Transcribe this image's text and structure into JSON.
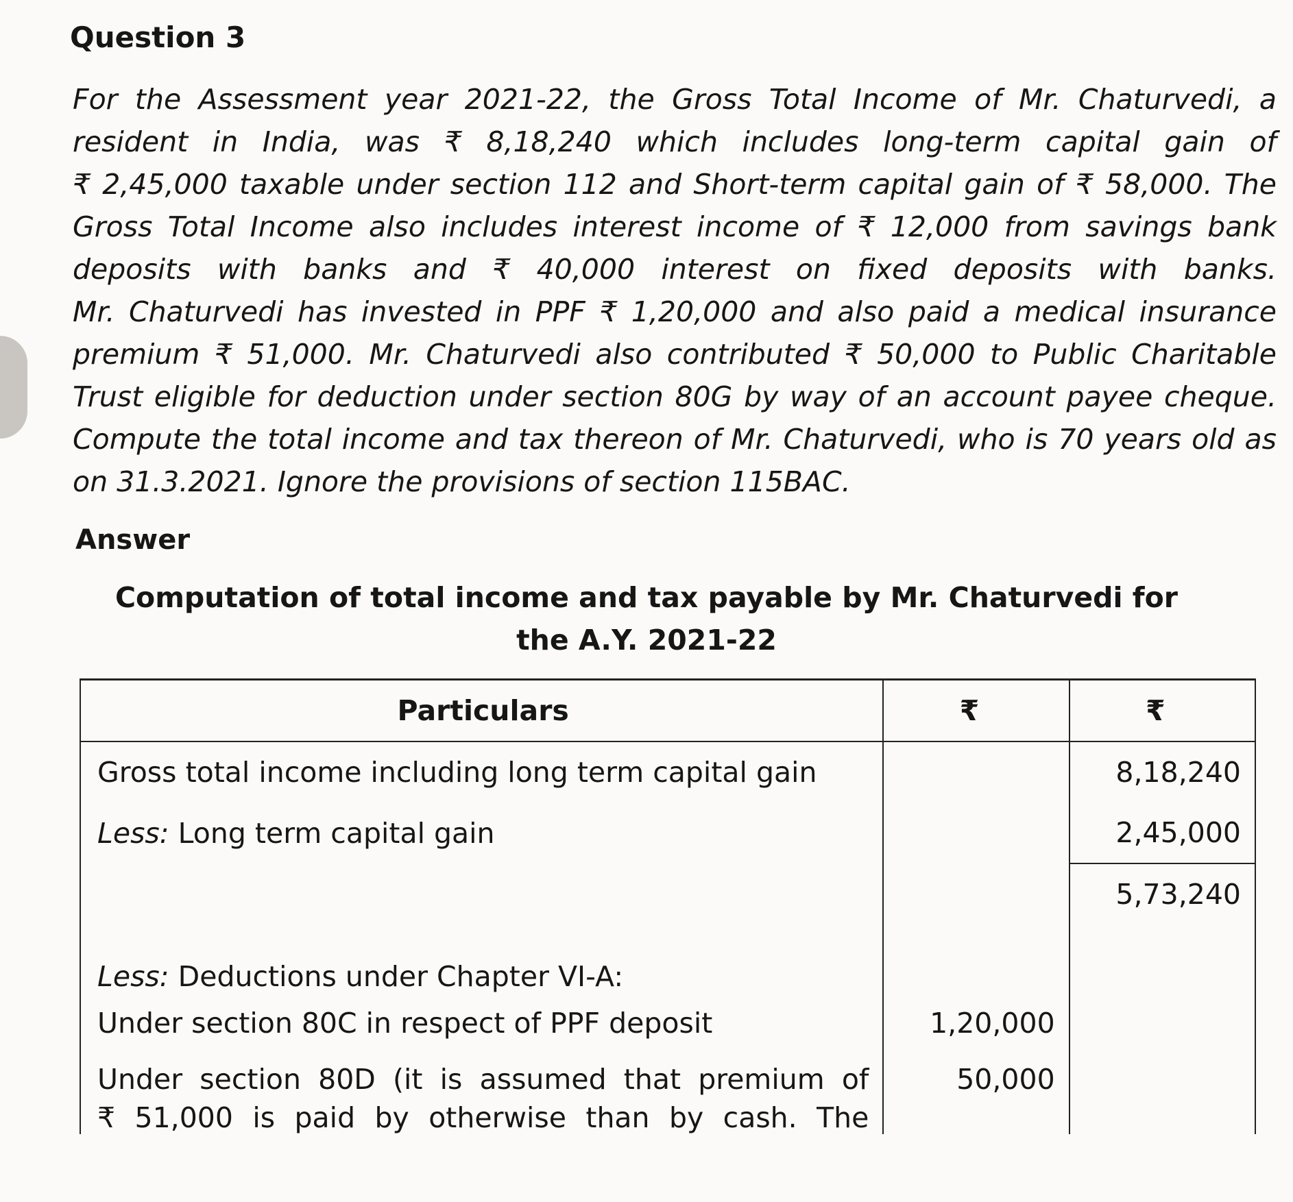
{
  "question_title": "Question 3",
  "question_lines": [
    "For the Assessment year 2021-22, the Gross Total Income of Mr. Chaturvedi, a",
    "resident in India, was ₹ 8,18,240 which includes long-term capital gain of",
    "₹ 2,45,000 taxable under section 112 and Short-term capital gain of ₹ 58,000. The",
    "Gross Total Income also includes interest income of ₹ 12,000 from savings bank",
    "deposits with banks and ₹ 40,000 interest on fixed deposits with banks.",
    "Mr. Chaturvedi has invested in PPF ₹ 1,20,000 and also paid a medical insurance",
    "premium ₹ 51,000. Mr. Chaturvedi also contributed ₹ 50,000 to Public Charitable",
    "Trust eligible for deduction under section 80G by way of an account payee cheque.",
    "Compute the total income and tax thereon of Mr. Chaturvedi, who is 70 years old as",
    "on 31.3.2021. Ignore the provisions of section 115BAC."
  ],
  "answer_label": "Answer",
  "table_title_lines": [
    "Computation of total income and tax payable by Mr. Chaturvedi for",
    "the A.Y. 2021-22"
  ],
  "table": {
    "headers": [
      "Particulars",
      "₹",
      "₹"
    ],
    "rows": [
      {
        "less": "",
        "text": "Gross total income including long term capital gain",
        "col2": "",
        "col3": "8,18,240"
      },
      {
        "less": "Less:",
        "text": " Long term capital gain",
        "col2": "",
        "col3": "2,45,000"
      },
      {
        "less": "",
        "text": "",
        "col2": "",
        "col3": "5,73,240"
      },
      {
        "less": "Less:",
        "text": " Deductions under Chapter VI-A:",
        "col2": "",
        "col3": ""
      },
      {
        "less": "",
        "text": "Under section 80C in respect of PPF deposit",
        "col2": "1,20,000",
        "col3": ""
      },
      {
        "less": "",
        "text": "Under section 80D (it is assumed that premium of",
        "text2": "₹ 51,000 is paid by otherwise than by cash. The",
        "col2": "50,000",
        "col3": ""
      }
    ]
  }
}
